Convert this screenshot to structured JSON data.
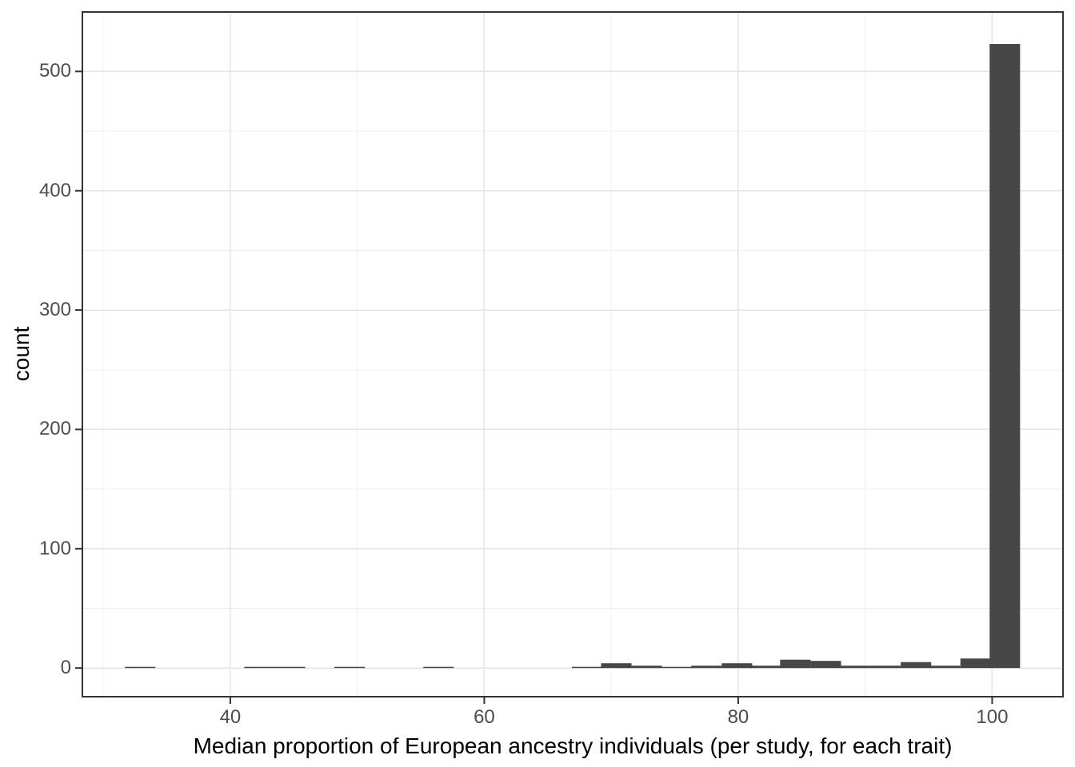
{
  "chart_data": {
    "type": "histogram",
    "title": "",
    "xlabel": "Median proportion of European ancestry individuals (per study, for each trait)",
    "ylabel": "count",
    "x_ticks": [
      40,
      60,
      80,
      100
    ],
    "x_minor_gridlines": [
      30,
      50,
      70,
      90
    ],
    "y_ticks": [
      0,
      100,
      200,
      300,
      400,
      500
    ],
    "y_minor_gridlines": [
      50,
      150,
      250,
      350,
      450
    ],
    "xlim": [
      28.35,
      105.58
    ],
    "ylim": [
      -24,
      549.8
    ],
    "binwidth": 2.4,
    "bins": [
      {
        "x": 32.9,
        "count": 1
      },
      {
        "x": 42.3,
        "count": 1
      },
      {
        "x": 44.7,
        "count": 1
      },
      {
        "x": 49.4,
        "count": 1
      },
      {
        "x": 56.4,
        "count": 1
      },
      {
        "x": 68.1,
        "count": 1
      },
      {
        "x": 70.4,
        "count": 4
      },
      {
        "x": 72.8,
        "count": 2
      },
      {
        "x": 75.2,
        "count": 1
      },
      {
        "x": 77.5,
        "count": 2
      },
      {
        "x": 79.9,
        "count": 4
      },
      {
        "x": 82.2,
        "count": 2
      },
      {
        "x": 84.5,
        "count": 7
      },
      {
        "x": 86.9,
        "count": 6
      },
      {
        "x": 89.2,
        "count": 2
      },
      {
        "x": 91.6,
        "count": 2
      },
      {
        "x": 94.0,
        "count": 5
      },
      {
        "x": 96.3,
        "count": 2
      },
      {
        "x": 98.7,
        "count": 8
      },
      {
        "x": 101.0,
        "count": 523
      }
    ],
    "legend": "none",
    "grid": "major+minor",
    "theme": "ggplot-theme-bw",
    "colors": {
      "bar_fill": "#474747",
      "panel_border": "#333333",
      "grid_major": "#E4E4E4",
      "grid_minor": "#F0F0F0",
      "tick_mark": "#333333",
      "tick_label": "#4D4D4D",
      "axis_title": "#000000",
      "background": "#FFFFFF"
    }
  }
}
